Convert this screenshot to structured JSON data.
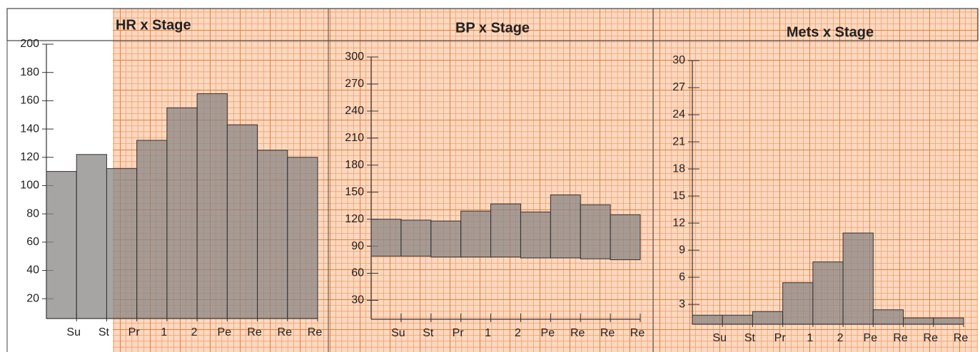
{
  "chart_data": [
    {
      "type": "bar",
      "title": "HR x Stage",
      "categories": [
        "Su",
        "St",
        "Pr",
        "1",
        "2",
        "Pe",
        "Re",
        "Re",
        "Re"
      ],
      "values": [
        110,
        122,
        112,
        132,
        155,
        165,
        143,
        125,
        120
      ],
      "color": "#8a8585",
      "ylim": [
        6,
        200
      ],
      "yticks": [
        20,
        40,
        60,
        80,
        100,
        120,
        140,
        160,
        180,
        200
      ]
    },
    {
      "type": "range_bar",
      "title": "BP x Stage",
      "categories": [
        "Su",
        "St",
        "Pr",
        "1",
        "2",
        "Pe",
        "Re",
        "Re",
        "Re"
      ],
      "low": [
        79,
        79,
        78,
        78,
        78,
        77,
        77,
        76,
        75
      ],
      "high": [
        120,
        119,
        118,
        129,
        137,
        128,
        147,
        136,
        125
      ],
      "color": "#8a8585",
      "ylim": [
        9,
        300
      ],
      "yticks": [
        30,
        60,
        90,
        120,
        150,
        180,
        210,
        240,
        270,
        300
      ]
    },
    {
      "type": "bar",
      "title": "Mets x Stage",
      "categories": [
        "Su",
        "St",
        "Pr",
        "1",
        "2",
        "Pe",
        "Re",
        "Re",
        "Re"
      ],
      "values": [
        1.8,
        1.8,
        2.2,
        5.4,
        7.7,
        10.9,
        2.4,
        1.5,
        1.5
      ],
      "color": "#8a8585",
      "ylim": [
        0.8,
        30
      ],
      "yticks": [
        3,
        6,
        9,
        12,
        15,
        18,
        21,
        24,
        27,
        30
      ]
    }
  ]
}
